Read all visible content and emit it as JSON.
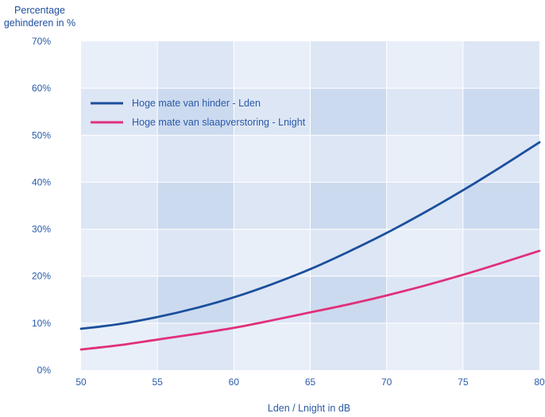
{
  "chart_data": {
    "type": "line",
    "ylabel": [
      "Percentage",
      "gehinderen in %"
    ],
    "xlabel": "Lden / Lnight in dB",
    "xlim": [
      50,
      80
    ],
    "ylim": [
      0,
      70
    ],
    "x_ticks": [
      "50",
      "55",
      "60",
      "65",
      "70",
      "75",
      "80"
    ],
    "y_ticks": [
      "0%",
      "10%",
      "20%",
      "30%",
      "40%",
      "50%",
      "60%",
      "70%"
    ],
    "legend_position": "top-left",
    "grid": true,
    "colors": {
      "lden": "#1b4f9c",
      "lnight": "#e0307a",
      "band_light": "#e9eff9",
      "band_mid": "#dde6f5",
      "band_dark": "#ccdaef"
    },
    "series": [
      {
        "name": "Hoge mate van hinder - Lden",
        "color_key": "lden",
        "x": [
          50,
          52.5,
          55,
          57.5,
          60,
          62.5,
          65,
          67.5,
          70,
          72.5,
          75,
          77.5,
          80
        ],
        "y": [
          8.8,
          9.8,
          11.3,
          13.2,
          15.5,
          18.3,
          21.5,
          25.2,
          29.2,
          33.6,
          38.3,
          43.3,
          48.5
        ]
      },
      {
        "name": "Hoge mate van slaapverstoring - Lnight",
        "color_key": "lnight",
        "x": [
          50,
          52.5,
          55,
          57.5,
          60,
          62.5,
          65,
          67.5,
          70,
          72.5,
          75,
          77.5,
          80
        ],
        "y": [
          4.4,
          5.3,
          6.5,
          7.7,
          9.0,
          10.6,
          12.3,
          14.0,
          15.9,
          18.0,
          20.3,
          22.8,
          25.4
        ]
      }
    ]
  }
}
